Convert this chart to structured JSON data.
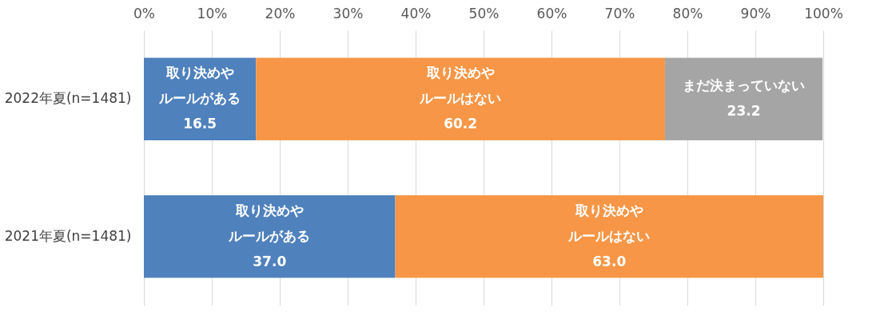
{
  "chart_data": {
    "type": "bar",
    "orientation": "horizontal",
    "stacked": true,
    "categories": [
      "2022年夏(n=1481)",
      "2021年夏(n=1481)"
    ],
    "series": [
      {
        "name": "取り決めやルールがある",
        "color": "#4f81bd",
        "values": [
          16.5,
          37.0
        ],
        "value_labels": [
          "16.5",
          "37.0"
        ]
      },
      {
        "name": "取り決めやルールはない",
        "color": "#f79646",
        "values": [
          60.2,
          63.0
        ],
        "value_labels": [
          "60.2",
          "63.0"
        ]
      },
      {
        "name": "まだ決まっていない",
        "color": "#a5a5a5",
        "values": [
          23.2,
          null
        ],
        "value_labels": [
          "23.2",
          null
        ]
      }
    ],
    "xlim": [
      0,
      100
    ],
    "xticks": [
      {
        "value": 0,
        "label": "0%"
      },
      {
        "value": 10,
        "label": "10%"
      },
      {
        "value": 20,
        "label": "20%"
      },
      {
        "value": 30,
        "label": "30%"
      },
      {
        "value": 40,
        "label": "40%"
      },
      {
        "value": 50,
        "label": "50%"
      },
      {
        "value": 60,
        "label": "60%"
      },
      {
        "value": 70,
        "label": "70%"
      },
      {
        "value": 80,
        "label": "80%"
      },
      {
        "value": 90,
        "label": "90%"
      },
      {
        "value": 100,
        "label": "100%"
      }
    ],
    "grid": "x",
    "legend": false
  }
}
